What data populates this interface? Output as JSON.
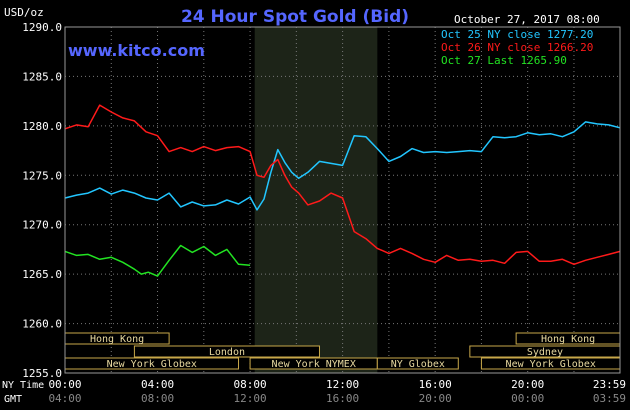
{
  "chart_data": {
    "type": "line",
    "title": "24 Hour Spot Gold (Bid)",
    "website": "www.kitco.com",
    "date_label": "October 27, 2017 08:00",
    "ylabel": "USD/oz",
    "ylim": [
      1255.0,
      1290.0
    ],
    "y_ticks": [
      "1290.0",
      "1285.0",
      "1280.0",
      "1275.0",
      "1270.0",
      "1265.0",
      "1260.0",
      "1255.0"
    ],
    "x_ticks_ny": [
      "00:00",
      "04:00",
      "08:00",
      "12:00",
      "16:00",
      "20:00",
      "23:59"
    ],
    "x_ticks_gmt": [
      "04:00",
      "08:00",
      "12:00",
      "16:00",
      "20:00",
      "00:00",
      "03:59"
    ],
    "x_row_label_ny": "NY Time",
    "x_row_label_gmt": "GMT",
    "legend_position": "top-right",
    "market_hours_highlight": [
      8.2,
      13.5
    ],
    "sessions": {
      "row1": [
        {
          "label": "Hong Kong",
          "start": 0,
          "end": 4.5
        },
        {
          "label": "Hong Kong",
          "start": 19.5,
          "end": 24
        }
      ],
      "row2": [
        {
          "label": "London",
          "start": 3,
          "end": 11
        },
        {
          "label": "Sydney",
          "start": 17.5,
          "end": 24
        }
      ],
      "row3": [
        {
          "label": "New York Globex",
          "start": 0,
          "end": 7.5
        },
        {
          "label": "New York NYMEX",
          "start": 8,
          "end": 13.5
        },
        {
          "label": "NY Globex",
          "start": 13.5,
          "end": 17
        },
        {
          "label": "New York Globex",
          "start": 18,
          "end": 24
        }
      ]
    },
    "series": [
      {
        "name": "Oct 25 NY close 1277.20",
        "color": "#22c6ff",
        "x": [
          0,
          0.5,
          1,
          1.5,
          2,
          2.5,
          3,
          3.5,
          4,
          4.5,
          5,
          5.5,
          6,
          6.5,
          7,
          7.5,
          8,
          8.3,
          8.6,
          8.9,
          9.2,
          9.5,
          9.8,
          10.1,
          10.5,
          11,
          11.5,
          12,
          12.5,
          13,
          13.5,
          14,
          14.5,
          15,
          15.5,
          16,
          16.5,
          17,
          17.5,
          18,
          18.5,
          19,
          19.5,
          20,
          20.5,
          21,
          21.5,
          22,
          22.5,
          23,
          23.5,
          23.99
        ],
        "values": [
          1272.7,
          1273.0,
          1273.2,
          1273.7,
          1273.1,
          1273.5,
          1273.2,
          1272.7,
          1272.5,
          1273.2,
          1271.8,
          1272.3,
          1271.9,
          1272.0,
          1272.5,
          1272.1,
          1272.8,
          1271.5,
          1272.6,
          1275.3,
          1277.6,
          1276.3,
          1275.3,
          1274.7,
          1275.3,
          1276.4,
          1276.2,
          1276.0,
          1279.0,
          1278.9,
          1277.7,
          1276.4,
          1276.9,
          1277.7,
          1277.3,
          1277.4,
          1277.3,
          1277.4,
          1277.5,
          1277.4,
          1278.9,
          1278.8,
          1278.9,
          1279.3,
          1279.1,
          1279.2,
          1278.9,
          1279.4,
          1280.4,
          1280.2,
          1280.1,
          1279.8
        ]
      },
      {
        "name": "Oct 26 NY close 1266.20",
        "color": "#ff1a1a",
        "x": [
          0,
          0.5,
          1,
          1.5,
          2,
          2.5,
          3,
          3.5,
          4,
          4.5,
          5,
          5.5,
          6,
          6.5,
          7,
          7.5,
          8,
          8.3,
          8.6,
          8.9,
          9.2,
          9.5,
          9.8,
          10.1,
          10.5,
          11,
          11.5,
          12,
          12.5,
          13,
          13.5,
          14,
          14.5,
          15,
          15.5,
          16,
          16.5,
          17,
          17.5,
          18,
          18.5,
          19,
          19.5,
          20,
          20.5,
          21,
          21.5,
          22,
          22.5,
          23,
          23.5,
          23.99
        ],
        "values": [
          1279.7,
          1280.1,
          1279.9,
          1282.1,
          1281.4,
          1280.8,
          1280.5,
          1279.4,
          1279.0,
          1277.4,
          1277.8,
          1277.4,
          1277.9,
          1277.5,
          1277.8,
          1277.9,
          1277.4,
          1275.0,
          1274.8,
          1276.0,
          1276.6,
          1275.0,
          1273.8,
          1273.2,
          1272.0,
          1272.4,
          1273.2,
          1272.7,
          1269.3,
          1268.6,
          1267.6,
          1267.1,
          1267.6,
          1267.1,
          1266.5,
          1266.2,
          1266.9,
          1266.4,
          1266.5,
          1266.3,
          1266.4,
          1266.1,
          1267.2,
          1267.3,
          1266.3,
          1266.3,
          1266.5,
          1266.0,
          1266.4,
          1266.7,
          1267.0,
          1267.3
        ]
      },
      {
        "name": "Oct 27 Last 1265.90",
        "color": "#22e322",
        "x": [
          0,
          0.5,
          1,
          1.5,
          2,
          2.5,
          3,
          3.3,
          3.6,
          4,
          4.5,
          5,
          5.5,
          6,
          6.5,
          7,
          7.5,
          8
        ],
        "values": [
          1267.3,
          1266.9,
          1267.0,
          1266.5,
          1266.7,
          1266.2,
          1265.5,
          1265.0,
          1265.2,
          1264.8,
          1266.4,
          1267.9,
          1267.2,
          1267.8,
          1266.9,
          1267.5,
          1266.0,
          1265.9
        ]
      }
    ]
  }
}
